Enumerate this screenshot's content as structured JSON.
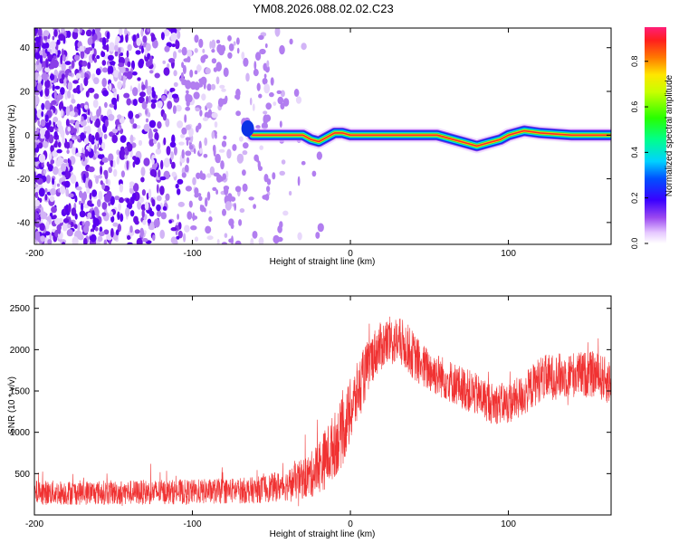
{
  "chart_data": [
    {
      "type": "heatmap",
      "title": "YM08.2026.088.02.02.C23",
      "xlabel": "Height of straight line (km)",
      "ylabel": "Frequency (Hz)",
      "xlim": [
        -200,
        165
      ],
      "ylim": [
        -50,
        49
      ],
      "xticks": [
        "-200",
        "-100",
        "0",
        "100"
      ],
      "yticks": [
        "-40",
        "-20",
        "0",
        "20",
        "40"
      ],
      "colorbar": {
        "label": "Normalized spectral amplitude",
        "range": [
          0,
          0.95
        ],
        "ticks": [
          "0.0",
          "0.2",
          "0.4",
          "0.6",
          "0.8"
        ]
      },
      "noise_region_x": [
        -200,
        -30
      ],
      "line_trace": {
        "x": [
          -62,
          -30,
          -25,
          -20,
          -15,
          -10,
          -5,
          0,
          40,
          55,
          60,
          65,
          70,
          75,
          80,
          85,
          90,
          95,
          100,
          105,
          110,
          120,
          140,
          165
        ],
        "y": [
          0,
          0,
          -2,
          -3,
          -1,
          1,
          1,
          0,
          0,
          0,
          -1,
          -2,
          -3,
          -4,
          -5,
          -4,
          -3,
          -2,
          0,
          1,
          2,
          1,
          0,
          0
        ]
      }
    },
    {
      "type": "line",
      "xlabel": "Height of straight line (km)",
      "ylabel": "SNR (10 * v/v)",
      "xlim": [
        -200,
        165
      ],
      "ylim": [
        0,
        2650
      ],
      "xticks": [
        "-200",
        "-100",
        "0",
        "100"
      ],
      "yticks": [
        "500",
        "1000",
        "1500",
        "2000",
        "2500"
      ],
      "series": [
        {
          "name": "SNR",
          "color": "#f03232",
          "x": [
            -200,
            -150,
            -100,
            -60,
            -40,
            -25,
            -15,
            -5,
            0,
            5,
            10,
            15,
            20,
            25,
            30,
            35,
            45,
            60,
            80,
            90,
            100,
            110,
            120,
            140,
            155,
            165
          ],
          "mean": [
            270,
            270,
            280,
            300,
            360,
            480,
            700,
            1000,
            1250,
            1500,
            1750,
            1950,
            2050,
            2100,
            2100,
            2050,
            1800,
            1650,
            1450,
            1350,
            1350,
            1450,
            1650,
            1700,
            1700,
            1600
          ],
          "spread": [
            150,
            150,
            150,
            160,
            190,
            280,
            380,
            420,
            400,
            380,
            330,
            300,
            300,
            300,
            300,
            300,
            280,
            260,
            260,
            250,
            250,
            260,
            280,
            280,
            280,
            280
          ]
        }
      ]
    }
  ]
}
